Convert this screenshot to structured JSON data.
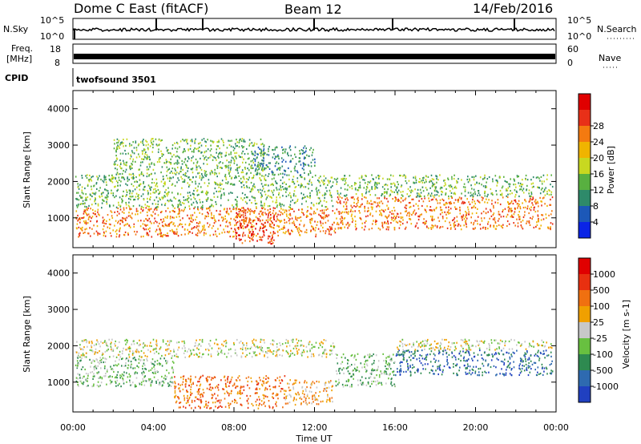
{
  "header": {
    "station": "Dome C East (fitACF)",
    "beam": "Beam 12",
    "date": "14/Feb/2016"
  },
  "panels": {
    "nsky": {
      "label": "N.Sky",
      "y_top": "10^5",
      "y_bottom": "10^0",
      "right_top": "10^5",
      "right_bottom": "10^0",
      "right_label": "N.Search"
    },
    "freq": {
      "label_line1": "Freq.",
      "label_line2": "[MHz]",
      "y_top": "18",
      "y_bottom": "8",
      "right_top": "60",
      "right_bottom": "0",
      "right_label": "Nave"
    },
    "cpid": {
      "label": "CPID",
      "program": "twofsound 3501"
    }
  },
  "chart_data": [
    {
      "type": "heatmap",
      "quantity": "power",
      "ylabel": "Slant Range [km]",
      "xlabel": "",
      "yticks": [
        "1000",
        "2000",
        "3000",
        "4000"
      ],
      "ylim": [
        180,
        4500
      ],
      "xlim": [
        0,
        24
      ],
      "colorbar": {
        "label": "Power [dB]",
        "ticks": [
          "4",
          "8",
          "12",
          "16",
          "20",
          "24",
          "28"
        ],
        "range": [
          0,
          32
        ],
        "colors": [
          "#0a24e6",
          "#1c58b8",
          "#2e8a6a",
          "#58b040",
          "#c8d820",
          "#f0b400",
          "#f47a10",
          "#e83018",
          "#e00000"
        ]
      },
      "bands": [
        {
          "x0": 0.1,
          "x1": 13.0,
          "y0": 500,
          "y1": 1300,
          "level": 6
        },
        {
          "x0": 0.1,
          "x1": 13.0,
          "y0": 1300,
          "y1": 2200,
          "level": 3
        },
        {
          "x0": 2.0,
          "x1": 9.5,
          "y0": 2200,
          "y1": 3200,
          "level": 3
        },
        {
          "x0": 9.0,
          "x1": 12.0,
          "y0": 2200,
          "y1": 3000,
          "level": 2
        },
        {
          "x0": 13.0,
          "x1": 23.8,
          "y0": 700,
          "y1": 1600,
          "level": 6
        },
        {
          "x0": 13.0,
          "x1": 23.8,
          "y0": 1600,
          "y1": 2200,
          "level": 3
        },
        {
          "x0": 8.0,
          "x1": 10.0,
          "y0": 300,
          "y1": 1300,
          "level": 7
        }
      ]
    },
    {
      "type": "heatmap",
      "quantity": "velocity",
      "ylabel": "Slant Range [km]",
      "xlabel": "Time UT",
      "xticks": [
        "00:00",
        "04:00",
        "08:00",
        "12:00",
        "16:00",
        "20:00",
        "00:00"
      ],
      "yticks": [
        "1000",
        "2000",
        "3000",
        "4000"
      ],
      "ylim": [
        180,
        4500
      ],
      "xlim": [
        0,
        24
      ],
      "colorbar": {
        "label": "Velocity [m s-1]",
        "ticks": [
          "1000",
          "500",
          "100",
          "25",
          "-25",
          "-100",
          "-500",
          "-1000"
        ],
        "colors": [
          "#2040c0",
          "#2e6ab0",
          "#2e8a50",
          "#68c040",
          "#c8c8c8",
          "#f0a000",
          "#f07010",
          "#e83010",
          "#e00000"
        ]
      },
      "bands": [
        {
          "x0": 0.1,
          "x1": 13.0,
          "y0": 1700,
          "y1": 2200,
          "level": 4
        },
        {
          "x0": 0.1,
          "x1": 5.0,
          "y0": 900,
          "y1": 1700,
          "level": 3
        },
        {
          "x0": 5.0,
          "x1": 10.5,
          "y0": 300,
          "y1": 1200,
          "level": 6
        },
        {
          "x0": 10.5,
          "x1": 13.0,
          "y0": 400,
          "y1": 1100,
          "level": 5
        },
        {
          "x0": 13.0,
          "x1": 16.0,
          "y0": 900,
          "y1": 1800,
          "level": 3
        },
        {
          "x0": 16.0,
          "x1": 23.8,
          "y0": 1200,
          "y1": 1900,
          "level": 1
        },
        {
          "x0": 16.0,
          "x1": 23.8,
          "y0": 1900,
          "y1": 2200,
          "level": 4
        }
      ]
    }
  ]
}
